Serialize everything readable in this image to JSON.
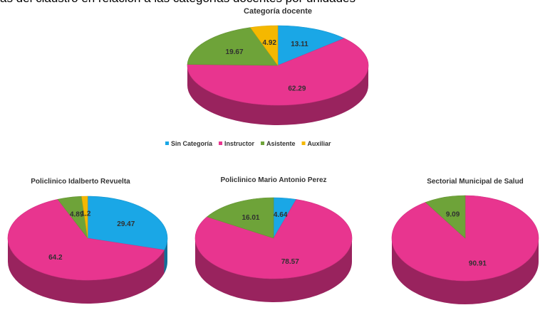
{
  "header_text": "as del claustro en relación a las categorías docentes por unidades",
  "legend": [
    {
      "label": "Sin Categoría",
      "color": "#1aa7e6"
    },
    {
      "label": "Instructor",
      "color": "#e8358f"
    },
    {
      "label": "Asistente",
      "color": "#6ea339"
    },
    {
      "label": "Auxiliar",
      "color": "#f5b800"
    }
  ],
  "chart_data": [
    {
      "type": "pie",
      "title": "Categoría docente",
      "slices": [
        {
          "category": "Sin Categoría",
          "value": 13.11,
          "label": "13.11"
        },
        {
          "category": "Instructor",
          "value": 62.29,
          "label": "62.29"
        },
        {
          "category": "Asistente",
          "value": 19.67,
          "label": "19.67"
        },
        {
          "category": "Auxiliar",
          "value": 4.92,
          "label": "4.92"
        }
      ]
    },
    {
      "type": "pie",
      "title": "Policlinico Idalberto Revuelta",
      "slices": [
        {
          "category": "Sin Categoría",
          "value": 29.47,
          "label": "29.47"
        },
        {
          "category": "Instructor",
          "value": 64.2,
          "label": "64.2"
        },
        {
          "category": "Asistente",
          "value": 4.89,
          "label": "4.89"
        },
        {
          "category": "Auxiliar",
          "value": 1.2,
          "label": "1.2"
        }
      ]
    },
    {
      "type": "pie",
      "title": "Policlinico Mario Antonio Perez",
      "slices": [
        {
          "category": "Sin Categoría",
          "value": 4.64,
          "label": "4.64"
        },
        {
          "category": "Instructor",
          "value": 78.57,
          "label": "78.57"
        },
        {
          "category": "Asistente",
          "value": 16.01,
          "label": "16.01"
        }
      ]
    },
    {
      "type": "pie",
      "title": "Sectorial Municipal de Salud",
      "slices": [
        {
          "category": "Instructor",
          "value": 90.91,
          "label": "90.91"
        },
        {
          "category": "Asistente",
          "value": 9.09,
          "label": "9.09"
        }
      ]
    }
  ]
}
